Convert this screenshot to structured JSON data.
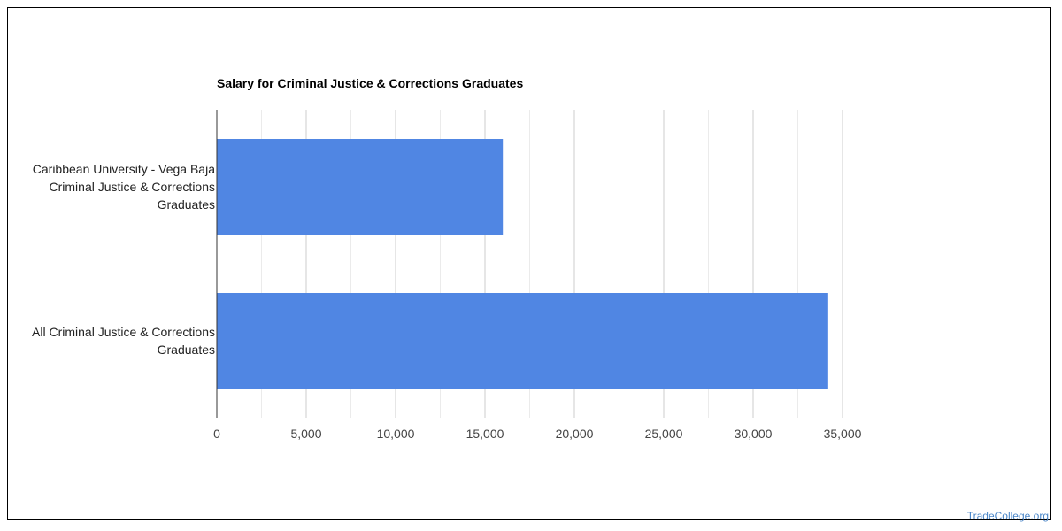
{
  "chart_data": {
    "type": "bar",
    "orientation": "horizontal",
    "title": "Salary for Criminal Justice & Corrections Graduates",
    "categories": [
      "Caribbean University - Vega Baja Criminal Justice & Corrections Graduates",
      "All Criminal Justice & Corrections Graduates"
    ],
    "category_lines": [
      [
        "Caribbean University - Vega Baja",
        "Criminal Justice & Corrections",
        "Graduates"
      ],
      [
        "All Criminal Justice & Corrections",
        "Graduates"
      ]
    ],
    "values": [
      16000,
      34200
    ],
    "xlim": [
      0,
      35000
    ],
    "ticks": [
      0,
      5000,
      10000,
      15000,
      20000,
      25000,
      30000,
      35000
    ],
    "tick_labels": [
      "0",
      "5,000",
      "10,000",
      "15,000",
      "20,000",
      "25,000",
      "30,000",
      "35,000"
    ],
    "bar_color": "#5086e3",
    "grid": true,
    "legend": "none"
  },
  "watermark": "TradeCollege.org"
}
